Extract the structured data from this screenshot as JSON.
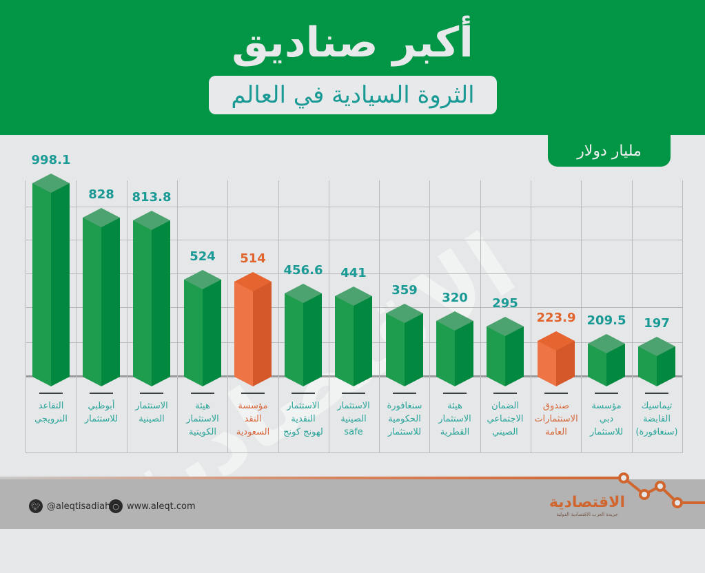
{
  "header": {
    "title": "أكبر صناديق",
    "subtitle": "الثروة السيادية في العالم",
    "unit_label": "مليار دولار"
  },
  "colors": {
    "header_green": "#019645",
    "bar_green": "#1f9d4f",
    "bar_orange": "#ef7445",
    "value_teal": "#1a9a95",
    "value_orange": "#e0642c",
    "background": "#e6e7e8",
    "footer_gray": "#b3b3b3",
    "brand_orange": "#d0652e"
  },
  "chart_data": {
    "type": "bar",
    "title": "أكبر صناديق الثروة السيادية في العالم",
    "ylabel": "مليار دولار",
    "xlabel": "",
    "categories": [
      "التقاعد النرويجي",
      "أبوظبي للاستثمار",
      "الاستثمار الصينية",
      "هيئة الاستثمار الكويتية",
      "مؤسسة النقد السعودية",
      "الاستثمار النقدية لهونج كونج",
      "الاستثمار الصينية safe",
      "سنغافورة الحكومية للاستثمار",
      "هيئة الاستثمار القطرية",
      "الضمان الاجتماعي الصيني",
      "صندوق الاستثمارات العامة",
      "مؤسسة دبي للاستثمار",
      "تيماسيك القابضة (سنغافورة)"
    ],
    "values": [
      998.1,
      828,
      813.8,
      524,
      514,
      456.6,
      441,
      359,
      320,
      295,
      223.9,
      209.5,
      197
    ],
    "highlighted": [
      false,
      false,
      false,
      false,
      true,
      false,
      false,
      false,
      false,
      false,
      true,
      false,
      false
    ],
    "grid": true,
    "legend": null
  },
  "bars": [
    {
      "value": "998.1",
      "label_lines": [
        "التقاعد",
        "النرويجي"
      ],
      "color": "green"
    },
    {
      "value": "828",
      "label_lines": [
        "أبوظبي",
        "للاستثمار"
      ],
      "color": "green"
    },
    {
      "value": "813.8",
      "label_lines": [
        "الاستثمار",
        "الصينية"
      ],
      "color": "green"
    },
    {
      "value": "524",
      "label_lines": [
        "هيئة",
        "الاستثمار",
        "الكويتية"
      ],
      "color": "green"
    },
    {
      "value": "514",
      "label_lines": [
        "مؤسسة",
        "النقد",
        "السعودية"
      ],
      "color": "orange"
    },
    {
      "value": "456.6",
      "label_lines": [
        "الاستثمار",
        "النقدية",
        "لهونج كونج"
      ],
      "color": "green"
    },
    {
      "value": "441",
      "label_lines": [
        "الاستثمار",
        "الصينية",
        "safe"
      ],
      "color": "green"
    },
    {
      "value": "359",
      "label_lines": [
        "سنغافورة",
        "الحكومية",
        "للاستثمار"
      ],
      "color": "green"
    },
    {
      "value": "320",
      "label_lines": [
        "هيئة",
        "الاستثمار",
        "القطرية"
      ],
      "color": "green"
    },
    {
      "value": "295",
      "label_lines": [
        "الضمان",
        "الاجتماعي",
        "الصيني"
      ],
      "color": "green"
    },
    {
      "value": "223.9",
      "label_lines": [
        "صندوق",
        "الاستثمارات",
        "العامة"
      ],
      "color": "orange"
    },
    {
      "value": "209.5",
      "label_lines": [
        "مؤسسة",
        "دبي",
        "للاستثمار"
      ],
      "color": "green"
    },
    {
      "value": "197",
      "label_lines": [
        "تيماسيك",
        "القابضة",
        "(سنغافورة)"
      ],
      "color": "green"
    }
  ],
  "watermark": "الاقتصادية",
  "footer": {
    "twitter_handle": "@aleqtisadiah",
    "website": "www.aleqt.com",
    "brand_name": "الاقتصادية",
    "brand_tagline": "جريدة العرب الاقتصادية الدولية"
  }
}
